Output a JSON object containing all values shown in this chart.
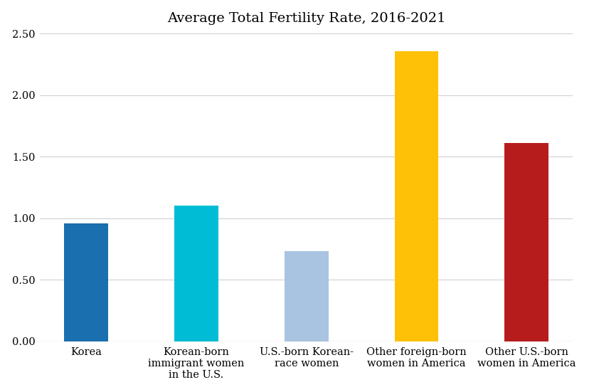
{
  "title": "Average Total Fertility Rate, 2016-2021",
  "categories": [
    "Korea",
    "Korean-born\nimmigrant women\nin the U.S.",
    "U.S.-born Korean-\nrace women",
    "Other foreign-born\nwomen in America",
    "Other U.S.-born\nwomen in America"
  ],
  "values": [
    0.96,
    1.1,
    0.73,
    2.36,
    1.61
  ],
  "bar_colors": [
    "#1a6faf",
    "#00bcd4",
    "#a8c4e0",
    "#ffc107",
    "#b71c1c"
  ],
  "ylim": [
    0,
    2.5
  ],
  "yticks": [
    0.0,
    0.5,
    1.0,
    1.5,
    2.0,
    2.5
  ],
  "background_color": "#ffffff",
  "title_fontsize": 14,
  "tick_fontsize": 10.5,
  "bar_width": 0.4,
  "grid_color": "#d0d0d0",
  "font_family": "serif"
}
